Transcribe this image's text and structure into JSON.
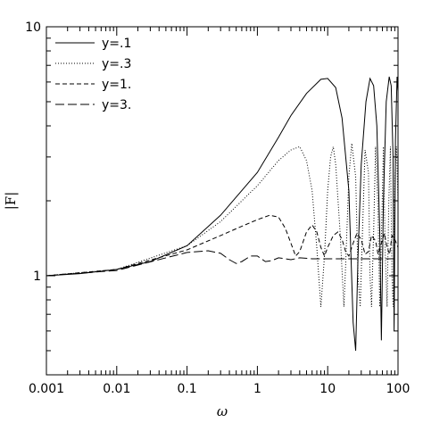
{
  "chart_data": {
    "type": "line",
    "title": "",
    "xlabel": "ω",
    "ylabel": "|F|",
    "xscale": "log",
    "yscale": "log",
    "xlim": [
      0.001,
      100
    ],
    "ylim": [
      0.4,
      10
    ],
    "x_ticks": [
      {
        "value": 0.001,
        "label": "0.001"
      },
      {
        "value": 0.01,
        "label": "0.01"
      },
      {
        "value": 0.1,
        "label": "0.1"
      },
      {
        "value": 1,
        "label": "1"
      },
      {
        "value": 10,
        "label": "10"
      },
      {
        "value": 100,
        "label": "100"
      }
    ],
    "y_ticks": [
      {
        "value": 1,
        "label": "1"
      },
      {
        "value": 10,
        "label": "10"
      }
    ],
    "grid": false,
    "legend_position": "top-left",
    "series": [
      {
        "name": "y=.1",
        "style": "solid",
        "points": [
          [
            0.001,
            1.0
          ],
          [
            0.003,
            1.02
          ],
          [
            0.01,
            1.06
          ],
          [
            0.03,
            1.14
          ],
          [
            0.1,
            1.32
          ],
          [
            0.3,
            1.75
          ],
          [
            1,
            2.6
          ],
          [
            2,
            3.6
          ],
          [
            3,
            4.4
          ],
          [
            5,
            5.4
          ],
          [
            8,
            6.15
          ],
          [
            10,
            6.2
          ],
          [
            13,
            5.7
          ],
          [
            16,
            4.3
          ],
          [
            20,
            2.2
          ],
          [
            23,
            0.65
          ],
          [
            25,
            0.5
          ],
          [
            27,
            1.2
          ],
          [
            30,
            2.8
          ],
          [
            35,
            5.0
          ],
          [
            40,
            6.2
          ],
          [
            45,
            5.8
          ],
          [
            50,
            4.0
          ],
          [
            55,
            1.5
          ],
          [
            58,
            0.55
          ],
          [
            62,
            2.0
          ],
          [
            68,
            5.0
          ],
          [
            75,
            6.3
          ],
          [
            80,
            5.8
          ],
          [
            85,
            3.0
          ],
          [
            88,
            0.6
          ],
          [
            92,
            3.5
          ],
          [
            97,
            6.3
          ],
          [
            100,
            5.5
          ]
        ]
      },
      {
        "name": "y=.3",
        "style": "dotted",
        "points": [
          [
            0.001,
            1.0
          ],
          [
            0.01,
            1.06
          ],
          [
            0.1,
            1.32
          ],
          [
            0.3,
            1.65
          ],
          [
            1,
            2.3
          ],
          [
            2,
            2.9
          ],
          [
            3,
            3.2
          ],
          [
            4,
            3.3
          ],
          [
            5,
            2.9
          ],
          [
            6,
            2.2
          ],
          [
            7,
            1.3
          ],
          [
            8,
            0.75
          ],
          [
            9,
            1.2
          ],
          [
            10,
            2.2
          ],
          [
            11,
            3.0
          ],
          [
            12,
            3.3
          ],
          [
            13,
            2.8
          ],
          [
            15,
            1.5
          ],
          [
            17,
            0.75
          ],
          [
            18,
            1.1
          ],
          [
            20,
            2.5
          ],
          [
            22,
            3.4
          ],
          [
            25,
            2.5
          ],
          [
            27,
            1.0
          ],
          [
            29,
            0.75
          ],
          [
            31,
            1.4
          ],
          [
            34,
            3.2
          ],
          [
            38,
            2.6
          ],
          [
            40,
            1.0
          ],
          [
            42,
            0.75
          ],
          [
            45,
            1.5
          ],
          [
            48,
            3.3
          ],
          [
            52,
            1.8
          ],
          [
            55,
            0.75
          ],
          [
            58,
            1.4
          ],
          [
            62,
            3.3
          ],
          [
            66,
            1.2
          ],
          [
            70,
            0.75
          ],
          [
            74,
            2.0
          ],
          [
            78,
            3.3
          ],
          [
            82,
            1.0
          ],
          [
            85,
            0.75
          ],
          [
            90,
            2.5
          ],
          [
            95,
            3.3
          ],
          [
            100,
            2.0
          ]
        ]
      },
      {
        "name": "y=1.",
        "style": "dashed",
        "points": [
          [
            0.001,
            1.0
          ],
          [
            0.01,
            1.06
          ],
          [
            0.1,
            1.27
          ],
          [
            0.3,
            1.45
          ],
          [
            0.6,
            1.58
          ],
          [
            1,
            1.68
          ],
          [
            1.5,
            1.75
          ],
          [
            2,
            1.72
          ],
          [
            2.5,
            1.55
          ],
          [
            3,
            1.35
          ],
          [
            3.5,
            1.2
          ],
          [
            4,
            1.25
          ],
          [
            5,
            1.5
          ],
          [
            6,
            1.6
          ],
          [
            7,
            1.5
          ],
          [
            8,
            1.3
          ],
          [
            9,
            1.2
          ],
          [
            10,
            1.3
          ],
          [
            12,
            1.45
          ],
          [
            14,
            1.5
          ],
          [
            16,
            1.4
          ],
          [
            18,
            1.25
          ],
          [
            20,
            1.2
          ],
          [
            23,
            1.35
          ],
          [
            26,
            1.48
          ],
          [
            30,
            1.4
          ],
          [
            34,
            1.22
          ],
          [
            38,
            1.25
          ],
          [
            42,
            1.45
          ],
          [
            48,
            1.38
          ],
          [
            52,
            1.22
          ],
          [
            58,
            1.35
          ],
          [
            64,
            1.48
          ],
          [
            70,
            1.3
          ],
          [
            76,
            1.22
          ],
          [
            82,
            1.45
          ],
          [
            90,
            1.4
          ],
          [
            100,
            1.3
          ]
        ]
      },
      {
        "name": "y=3.",
        "style": "longdash",
        "points": [
          [
            0.001,
            1.0
          ],
          [
            0.01,
            1.05
          ],
          [
            0.05,
            1.18
          ],
          [
            0.1,
            1.24
          ],
          [
            0.2,
            1.26
          ],
          [
            0.3,
            1.23
          ],
          [
            0.4,
            1.16
          ],
          [
            0.5,
            1.12
          ],
          [
            0.6,
            1.14
          ],
          [
            0.8,
            1.2
          ],
          [
            1,
            1.2
          ],
          [
            1.3,
            1.14
          ],
          [
            1.6,
            1.15
          ],
          [
            2,
            1.18
          ],
          [
            2.5,
            1.17
          ],
          [
            3,
            1.16
          ],
          [
            4,
            1.18
          ],
          [
            6,
            1.17
          ],
          [
            10,
            1.17
          ],
          [
            20,
            1.17
          ],
          [
            50,
            1.17
          ],
          [
            100,
            1.17
          ]
        ]
      }
    ]
  }
}
